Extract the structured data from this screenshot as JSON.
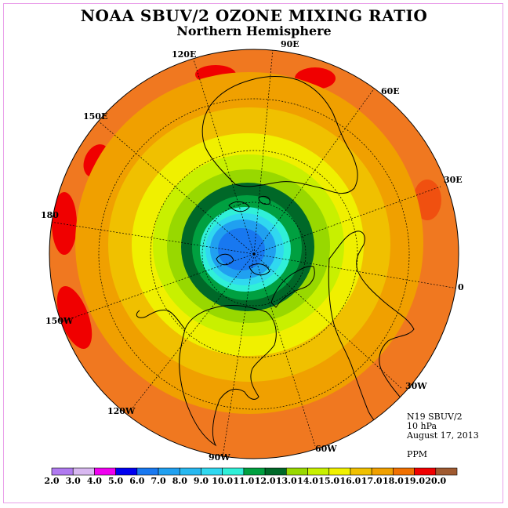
{
  "title": "NOAA SBUV/2 OZONE MIXING RATIO",
  "subtitle": "Northern Hemisphere",
  "longitude_labels": [
    "90E",
    "60E",
    "30E",
    "0",
    "30W",
    "60W",
    "90W",
    "120W",
    "150W",
    "180",
    "150E",
    "120E"
  ],
  "info": {
    "instrument": "N19 SBUV/2",
    "level": "10 hPa",
    "date": "August 17, 2013",
    "units": "PPM"
  },
  "colorbar": {
    "ticks": [
      "2.0",
      "3.0",
      "4.0",
      "5.0",
      "6.0",
      "7.0",
      "8.0",
      "9.0",
      "10.0",
      "11.0",
      "12.0",
      "13.0",
      "14.0",
      "15.0",
      "16.0",
      "17.0",
      "18.0",
      "19.0",
      "20.0"
    ],
    "colors": [
      "#b07af0",
      "#d8b8f0",
      "#f000f0",
      "#0000f0",
      "#1878f0",
      "#20a0f0",
      "#28b8f0",
      "#30d8f0",
      "#30f0d8",
      "#00a040",
      "#006828",
      "#98d800",
      "#c8f000",
      "#f0f000",
      "#f0c000",
      "#f0a000",
      "#f07000",
      "#f00000",
      "#a05a30"
    ]
  },
  "colors": {
    "frame": "#e9a0e9",
    "ocean_outer": "#f07a1e",
    "coastline": "#000000"
  }
}
